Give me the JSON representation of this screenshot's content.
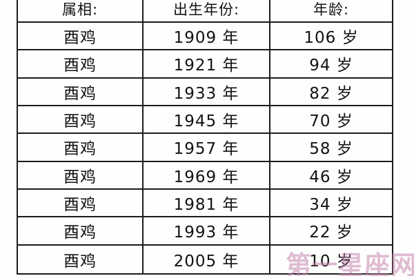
{
  "table": {
    "headers": [
      "属相:",
      "出生年份:",
      "年龄:"
    ],
    "rows": [
      {
        "zodiac": "酉鸡",
        "year": "1909 年",
        "age": "106 岁"
      },
      {
        "zodiac": "酉鸡",
        "year": "1921 年",
        "age": "94 岁"
      },
      {
        "zodiac": "酉鸡",
        "year": "1933 年",
        "age": "82 岁"
      },
      {
        "zodiac": "酉鸡",
        "year": "1945 年",
        "age": "70 岁"
      },
      {
        "zodiac": "酉鸡",
        "year": "1957 年",
        "age": "58 岁"
      },
      {
        "zodiac": "酉鸡",
        "year": "1969 年",
        "age": "46 岁"
      },
      {
        "zodiac": "酉鸡",
        "year": "1981 年",
        "age": "34 岁"
      },
      {
        "zodiac": "酉鸡",
        "year": "1993 年",
        "age": "22 岁"
      },
      {
        "zodiac": "酉鸡",
        "year": "2005 年",
        "age": "10 岁"
      }
    ]
  },
  "watermark": {
    "text": "第一星座网",
    "color": "#c487ae"
  },
  "colors": {
    "border": "#1b1b1b",
    "text": "#121212",
    "background": "#fefefe"
  },
  "chart_data": {
    "type": "table",
    "title": "",
    "columns": [
      "属相",
      "出生年份",
      "年龄"
    ],
    "rows": [
      [
        "酉鸡",
        "1909 年",
        "106 岁"
      ],
      [
        "酉鸡",
        "1921 年",
        "94 岁"
      ],
      [
        "酉鸡",
        "1933 年",
        "82 岁"
      ],
      [
        "酉鸡",
        "1945 年",
        "70 岁"
      ],
      [
        "酉鸡",
        "1957 年",
        "58 岁"
      ],
      [
        "酉鸡",
        "1969 年",
        "46 岁"
      ],
      [
        "酉鸡",
        "1981 年",
        "34 岁"
      ],
      [
        "酉鸡",
        "1993 年",
        "22 岁"
      ],
      [
        "酉鸡",
        "2005 年",
        "10 岁"
      ]
    ]
  }
}
